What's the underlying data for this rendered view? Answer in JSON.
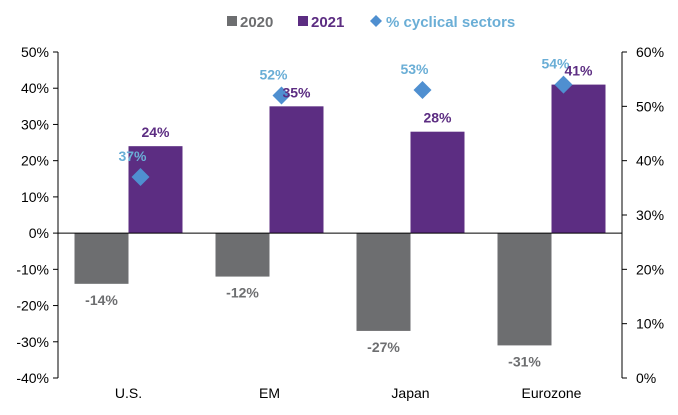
{
  "chart_data": {
    "type": "bar",
    "categories": [
      "U.S.",
      "EM",
      "Japan",
      "Eurozone"
    ],
    "series": [
      {
        "name": "2020",
        "type": "bar",
        "axis": "left",
        "color": "#6d6e70",
        "values": [
          -14,
          -12,
          -27,
          -31
        ],
        "labels": [
          "-14%",
          "-12%",
          "-27%",
          "-31%"
        ]
      },
      {
        "name": "2021",
        "type": "bar",
        "axis": "left",
        "color": "#5c2d82",
        "values": [
          24,
          35,
          28,
          41
        ],
        "labels": [
          "24%",
          "35%",
          "28%",
          "41%"
        ]
      },
      {
        "name": "% cyclical sectors",
        "type": "scatter",
        "marker": "diamond",
        "axis": "right",
        "color": "#4f8fd0",
        "label_color": "#6aaed6",
        "values": [
          37,
          52,
          53,
          54
        ],
        "labels": [
          "37%",
          "52%",
          "53%",
          "54%"
        ]
      }
    ],
    "y_left": {
      "min": -40,
      "max": 50,
      "step": 10,
      "ticks": [
        "50%",
        "40%",
        "30%",
        "20%",
        "10%",
        "0%",
        "-10%",
        "-20%",
        "-30%",
        "-40%"
      ]
    },
    "y_right": {
      "min": 0,
      "max": 60,
      "step": 10,
      "ticks": [
        "60%",
        "50%",
        "40%",
        "30%",
        "20%",
        "10%",
        "0%"
      ]
    },
    "legend": {
      "position": "top-center",
      "items": [
        "2020",
        "2021",
        "% cyclical sectors"
      ]
    },
    "grid": false
  }
}
